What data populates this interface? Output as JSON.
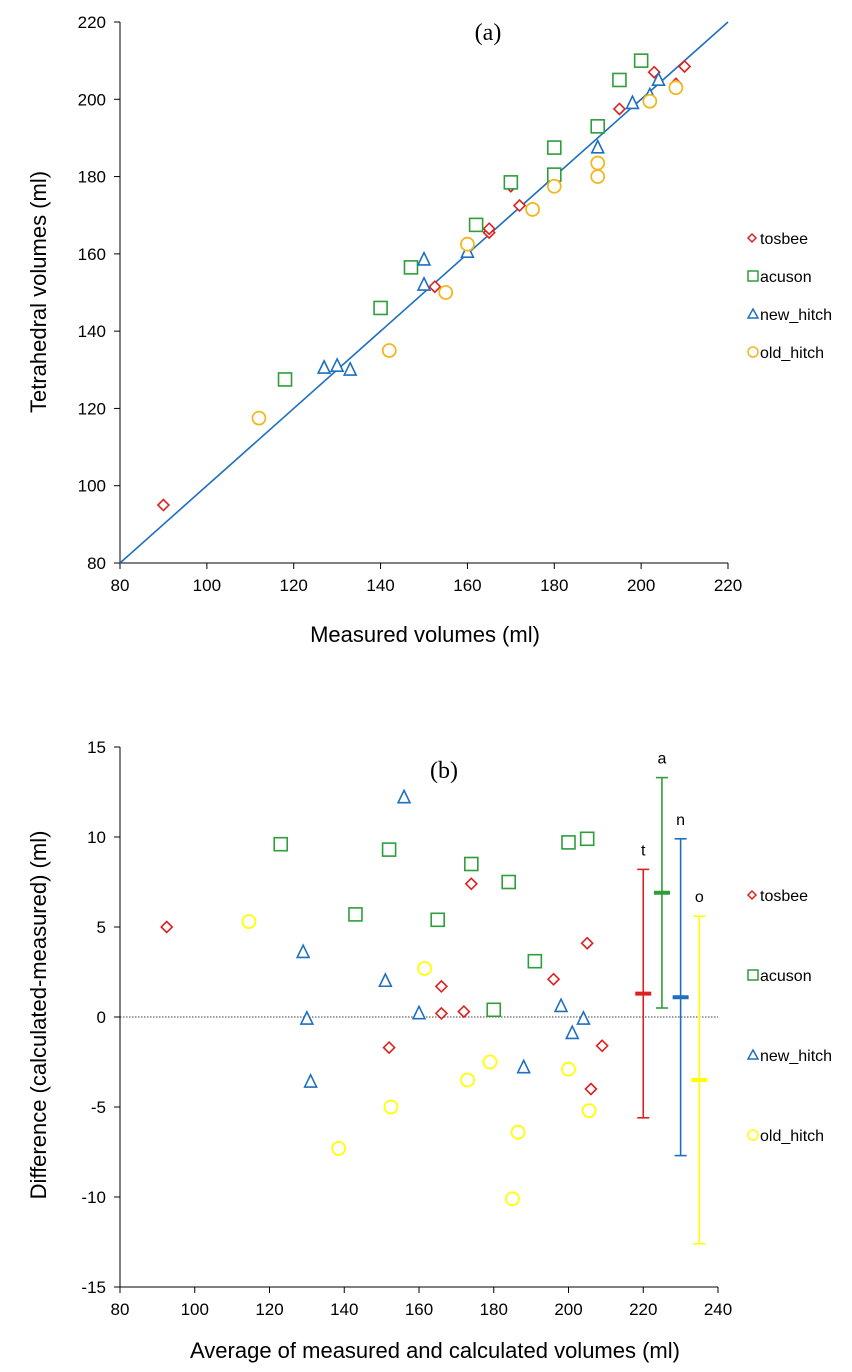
{
  "chart_data": [
    {
      "type": "scatter",
      "panel_label": "(a)",
      "xlabel": "Measured volumes (ml)",
      "ylabel": "Tetrahedral volumes (ml)",
      "xlim": [
        80,
        220
      ],
      "ylim": [
        80,
        220
      ],
      "xticks": [
        80,
        100,
        120,
        140,
        160,
        180,
        200,
        220
      ],
      "yticks": [
        80,
        100,
        120,
        140,
        160,
        180,
        200,
        220
      ],
      "identity_line": {
        "from": [
          80,
          80
        ],
        "to": [
          220,
          220
        ],
        "color": "#1f6fbf"
      },
      "legend_position": "right",
      "series": [
        {
          "name": "tosbee",
          "marker": "diamond",
          "color": "#e02020",
          "points": [
            [
              90,
              95
            ],
            [
              152.5,
              151.5
            ],
            [
              165,
              165.5
            ],
            [
              165,
              166.5
            ],
            [
              170,
              177.5
            ],
            [
              172,
              172.5
            ],
            [
              195,
              197.5
            ],
            [
              203,
              207
            ],
            [
              208,
              204
            ],
            [
              210,
              208.5
            ]
          ]
        },
        {
          "name": "acuson",
          "marker": "square",
          "color": "#2e9e3a",
          "points": [
            [
              118,
              127.5
            ],
            [
              140,
              146
            ],
            [
              147,
              156.5
            ],
            [
              162,
              167.5
            ],
            [
              170,
              178.5
            ],
            [
              180,
              180.5
            ],
            [
              180,
              187.5
            ],
            [
              190,
              193
            ],
            [
              195,
              205
            ],
            [
              200,
              210
            ]
          ]
        },
        {
          "name": "new_hitch",
          "marker": "triangle",
          "color": "#1f6fbf",
          "points": [
            [
              127,
              130.5
            ],
            [
              130,
              131
            ],
            [
              133,
              130
            ],
            [
              150,
              152
            ],
            [
              150,
              158.5
            ],
            [
              160,
              160.5
            ],
            [
              190,
              187.5
            ],
            [
              198,
              199
            ],
            [
              202,
              201
            ],
            [
              204,
              205
            ]
          ]
        },
        {
          "name": "old_hitch",
          "marker": "circle",
          "color": "#f0b820",
          "points": [
            [
              112,
              117.5
            ],
            [
              142,
              135
            ],
            [
              155,
              150
            ],
            [
              160,
              162.5
            ],
            [
              175,
              171.5
            ],
            [
              180,
              177.5
            ],
            [
              190,
              180
            ],
            [
              190,
              183.5
            ],
            [
              202,
              199.5
            ],
            [
              208,
              203
            ]
          ]
        }
      ]
    },
    {
      "type": "scatter",
      "panel_label": "(b)",
      "xlabel": "Average of measured and calculated volumes (ml)",
      "ylabel": "Difference (calculated-measured) (ml)",
      "xlim": [
        80,
        240
      ],
      "ylim": [
        -15,
        15
      ],
      "xticks": [
        80,
        100,
        120,
        140,
        160,
        180,
        200,
        220,
        240
      ],
      "yticks": [
        -15,
        -10,
        -5,
        0,
        5,
        10,
        15
      ],
      "zero_line": true,
      "legend_position": "right",
      "series": [
        {
          "name": "tosbee",
          "marker": "diamond",
          "color": "#e02020",
          "points": [
            [
              92.5,
              5
            ],
            [
              152,
              -1.7
            ],
            [
              166,
              1.7
            ],
            [
              166,
              0.2
            ],
            [
              172,
              0.3
            ],
            [
              174,
              7.4
            ],
            [
              196,
              2.1
            ],
            [
              205,
              4.1
            ],
            [
              206,
              -4
            ],
            [
              209,
              -1.6
            ]
          ]
        },
        {
          "name": "acuson",
          "marker": "square",
          "color": "#2e9e3a",
          "points": [
            [
              123,
              9.6
            ],
            [
              143,
              5.7
            ],
            [
              152,
              9.3
            ],
            [
              165,
              5.4
            ],
            [
              174,
              8.5
            ],
            [
              180,
              0.4
            ],
            [
              184,
              7.5
            ],
            [
              191,
              3.1
            ],
            [
              200,
              9.7
            ],
            [
              205,
              9.9
            ]
          ]
        },
        {
          "name": "new_hitch",
          "marker": "triangle",
          "color": "#1f6fbf",
          "points": [
            [
              129,
              3.6
            ],
            [
              130,
              -0.1
            ],
            [
              131,
              -3.6
            ],
            [
              151,
              2
            ],
            [
              156,
              12.2
            ],
            [
              160,
              0.2
            ],
            [
              188,
              -2.8
            ],
            [
              198,
              0.6
            ],
            [
              201,
              -0.9
            ],
            [
              204,
              -0.1
            ]
          ]
        },
        {
          "name": "old_hitch",
          "marker": "circle",
          "color": "#ffff00",
          "stroke": "#e6e600",
          "points": [
            [
              114.5,
              5.3
            ],
            [
              138.5,
              -7.3
            ],
            [
              152.5,
              -5
            ],
            [
              161.5,
              2.7
            ],
            [
              173,
              -3.5
            ],
            [
              179,
              -2.5
            ],
            [
              185,
              -10.1
            ],
            [
              186.5,
              -6.4
            ],
            [
              200,
              -2.9
            ],
            [
              205.5,
              -5.2
            ]
          ]
        }
      ],
      "error_bars": [
        {
          "label": "t",
          "x": 220,
          "mean": 1.3,
          "low": -5.6,
          "high": 8.2,
          "color": "#e02020"
        },
        {
          "label": "a",
          "x": 225,
          "mean": 6.9,
          "low": 0.5,
          "high": 13.3,
          "color": "#2e9e3a"
        },
        {
          "label": "n",
          "x": 230,
          "mean": 1.1,
          "low": -7.7,
          "high": 9.9,
          "color": "#1f6fbf"
        },
        {
          "label": "o",
          "x": 235,
          "mean": -3.5,
          "low": -12.6,
          "high": 5.6,
          "color": "#ffff00"
        }
      ]
    }
  ]
}
